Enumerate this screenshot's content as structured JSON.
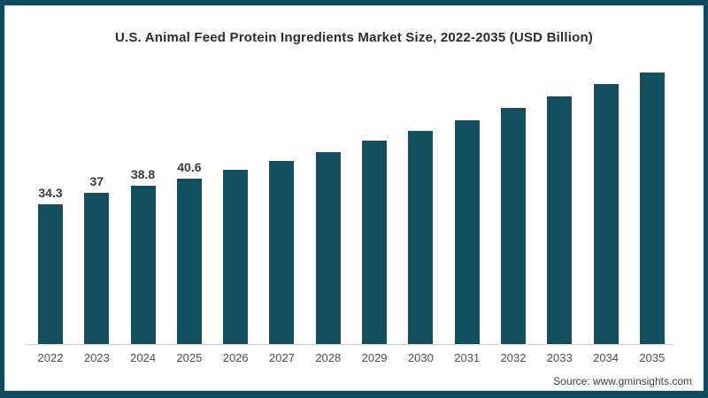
{
  "title": "U.S. Animal Feed Protein Ingredients Market Size, 2022-2035 (USD Billion)",
  "source_note": "Source: www.gminsights.com",
  "colors": {
    "bar": "#124F5F",
    "frame": "#0F4A60",
    "axis_line": "#D6D6D6",
    "title_text": "#2D2D2D",
    "value_label_text": "#3A3A3A",
    "tick_text": "#4F4F4F",
    "source_text": "#3F3F3F",
    "background": "#FFFFFF"
  },
  "chart_data": {
    "type": "bar",
    "title": "U.S. Animal Feed Protein Ingredients Market Size, 2022-2035 (USD Billion)",
    "categories": [
      "2022",
      "2023",
      "2024",
      "2025",
      "2026",
      "2027",
      "2028",
      "2029",
      "2030",
      "2031",
      "2032",
      "2033",
      "2034",
      "2035"
    ],
    "values": [
      34.3,
      37,
      38.8,
      40.6,
      42.7,
      44.8,
      47.1,
      49.9,
      52.3,
      54.9,
      57.8,
      60.7,
      63.8,
      66.6
    ],
    "data_labels": [
      "34.3",
      "37",
      "38.8",
      "40.6",
      "",
      "",
      "",
      "",
      "",
      "",
      "",
      "",
      "",
      ""
    ],
    "xlabel": "",
    "ylabel": "",
    "ylim": [
      0,
      70
    ],
    "grid": false,
    "legend": false,
    "bar_color": "#124F5F",
    "baseline_axis": "x-axis only, light gray",
    "note_labeled_values_only": "Only 2022-2025 bars display data labels; 2026-2035 values estimated from bar heights"
  }
}
